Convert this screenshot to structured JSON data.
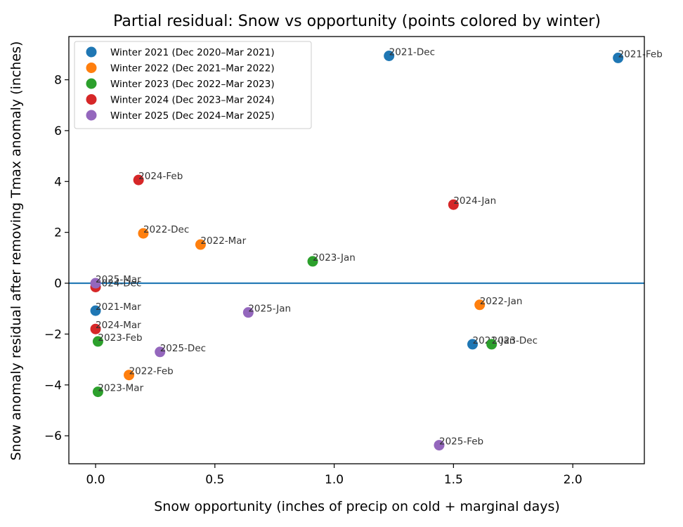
{
  "chart_data": {
    "type": "scatter",
    "title": "Partial residual: Snow vs opportunity (points colored by winter)",
    "xlabel": "Snow opportunity (inches of precip on cold + marginal days)",
    "ylabel": "Snow anomaly residual after removing Tmax anomaly (inches)",
    "xlim": [
      -0.112,
      2.3
    ],
    "ylim": [
      -7.1,
      9.7
    ],
    "xticks": [
      0.0,
      0.5,
      1.0,
      1.5,
      2.0
    ],
    "xtick_labels": [
      "0.0",
      "0.5",
      "1.0",
      "1.5",
      "2.0"
    ],
    "yticks": [
      -6,
      -4,
      -2,
      0,
      2,
      4,
      6,
      8
    ],
    "ytick_labels": [
      "−6",
      "−4",
      "−2",
      "0",
      "2",
      "4",
      "6",
      "8"
    ],
    "grid": false,
    "reference_line": {
      "type": "horizontal",
      "y": 0,
      "color": "#1f77b4"
    },
    "legend_position": "top-left",
    "series": [
      {
        "name": "Winter 2021 (Dec 2020–Mar 2021)",
        "color": "#1f77b4",
        "points": [
          {
            "x": 1.23,
            "y": 8.94,
            "label": "2021-Dec"
          },
          {
            "x": 2.19,
            "y": 8.86,
            "label": "2021-Feb"
          },
          {
            "x": 0.0,
            "y": -1.08,
            "label": "2021-Mar"
          },
          {
            "x": 1.58,
            "y": -2.4,
            "label": "2021-Jan"
          }
        ]
      },
      {
        "name": "Winter 2022 (Dec 2021–Mar 2022)",
        "color": "#ff7f0e",
        "points": [
          {
            "x": 0.2,
            "y": 1.96,
            "label": "2022-Dec"
          },
          {
            "x": 0.44,
            "y": 1.52,
            "label": "2022-Mar"
          },
          {
            "x": 1.61,
            "y": -0.85,
            "label": "2022-Jan"
          },
          {
            "x": 0.14,
            "y": -3.61,
            "label": "2022-Feb"
          }
        ]
      },
      {
        "name": "Winter 2023 (Dec 2022–Mar 2023)",
        "color": "#2ca02c",
        "points": [
          {
            "x": 0.91,
            "y": 0.86,
            "label": "2023-Jan"
          },
          {
            "x": 0.01,
            "y": -2.29,
            "label": "2023-Feb"
          },
          {
            "x": 1.66,
            "y": -2.4,
            "label": "2023-Dec"
          },
          {
            "x": 0.01,
            "y": -4.27,
            "label": "2023-Mar"
          }
        ]
      },
      {
        "name": "Winter 2024 (Dec 2023–Mar 2024)",
        "color": "#d62728",
        "points": [
          {
            "x": 0.18,
            "y": 4.06,
            "label": "2024-Feb"
          },
          {
            "x": 1.5,
            "y": 3.09,
            "label": "2024-Jan"
          },
          {
            "x": 0.0,
            "y": -0.15,
            "label": "2024-Dec"
          },
          {
            "x": 0.0,
            "y": -1.8,
            "label": "2024-Mar"
          }
        ]
      },
      {
        "name": "Winter 2025 (Dec 2024–Mar 2025)",
        "color": "#9467bd",
        "points": [
          {
            "x": 0.0,
            "y": 0.0,
            "label": "2025-Mar"
          },
          {
            "x": 0.64,
            "y": -1.15,
            "label": "2025-Jan"
          },
          {
            "x": 0.27,
            "y": -2.7,
            "label": "2025-Dec"
          },
          {
            "x": 1.44,
            "y": -6.37,
            "label": "2025-Feb"
          }
        ]
      }
    ]
  }
}
